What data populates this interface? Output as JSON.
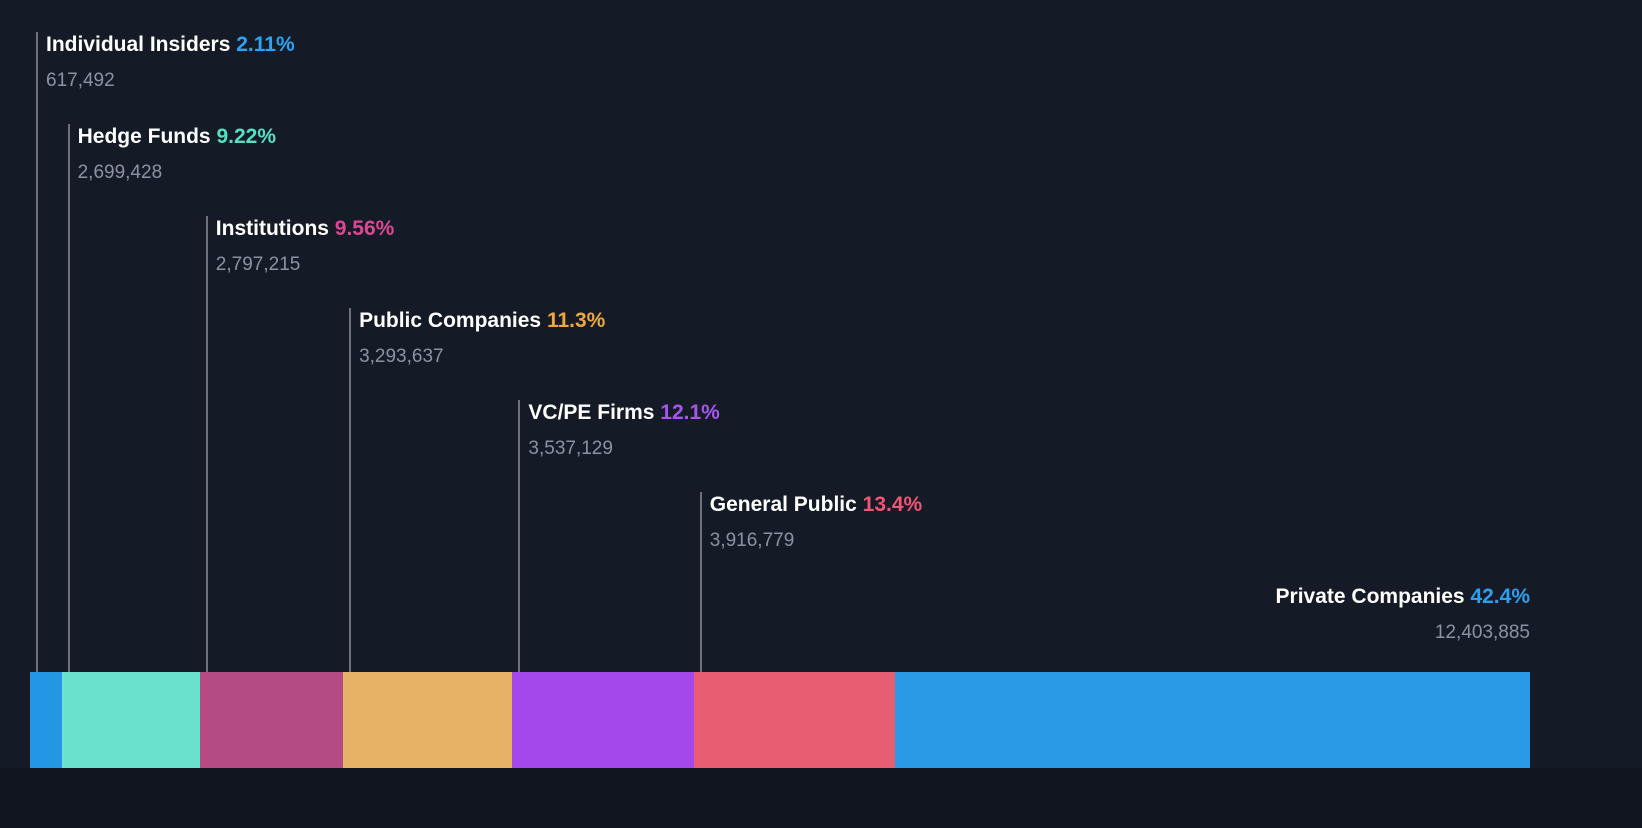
{
  "chart_data": {
    "type": "bar",
    "variant": "horizontal-stacked-proportional",
    "title": "",
    "legend": "none",
    "categories": [
      "Individual Insiders",
      "Hedge Funds",
      "Institutions",
      "Public Companies",
      "VC/PE Firms",
      "General Public",
      "Private Companies"
    ],
    "series": [
      {
        "name": "Individual Insiders",
        "pct": 2.11,
        "pct_label": "2.11%",
        "shares": "617,492",
        "bar_color": "#2397e4",
        "text_color": "#2aa4f4"
      },
      {
        "name": "Hedge Funds",
        "pct": 9.22,
        "pct_label": "9.22%",
        "shares": "2,699,428",
        "bar_color": "#68e2cc",
        "text_color": "#55e0c4"
      },
      {
        "name": "Institutions",
        "pct": 9.56,
        "pct_label": "9.56%",
        "shares": "2,797,215",
        "bar_color": "#b54b84",
        "text_color": "#dc4793"
      },
      {
        "name": "Public Companies",
        "pct": 11.3,
        "pct_label": "11.3%",
        "shares": "3,293,637",
        "bar_color": "#e8b266",
        "text_color": "#efa83e"
      },
      {
        "name": "VC/PE Firms",
        "pct": 12.1,
        "pct_label": "12.1%",
        "shares": "3,537,129",
        "bar_color": "#a448ec",
        "text_color": "#a855f0"
      },
      {
        "name": "General Public",
        "pct": 13.4,
        "pct_label": "13.4%",
        "shares": "3,916,779",
        "bar_color": "#e85d72",
        "text_color": "#f05574"
      },
      {
        "name": "Private Companies",
        "pct": 42.4,
        "pct_label": "42.4%",
        "shares": "12,403,885",
        "bar_color": "#2a9ae6",
        "text_color": "#2d9ff0"
      }
    ]
  },
  "colors": {
    "background": "#151b26",
    "bottom_strip": "#10151f",
    "category_text": "#ffffff",
    "count_text": "#8b93a2",
    "callout_line": "rgba(255,255,255,0.38)"
  }
}
